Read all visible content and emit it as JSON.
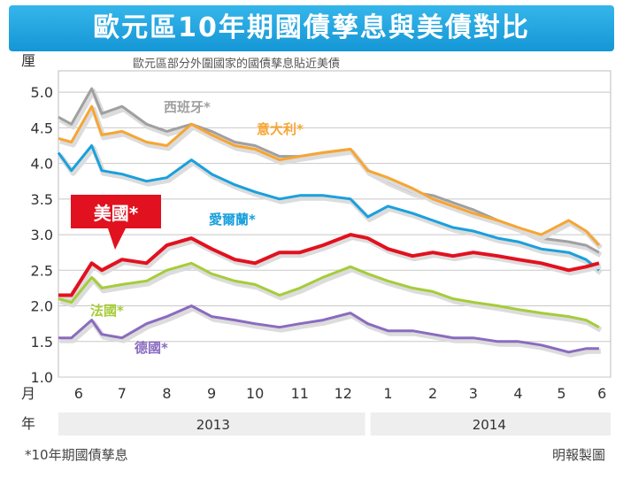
{
  "chart_data": {
    "type": "line",
    "title": "歐元區10年期國債孳息與美債對比",
    "subtitle": "歐元區部分外圍國家的國債孳息貼近美債",
    "ylabel": "厘",
    "month_label": "月",
    "year_label": "年",
    "ylim": [
      1.0,
      5.3
    ],
    "yticks": [
      "1.0",
      "1.5",
      "2.0",
      "2.5",
      "3.0",
      "3.5",
      "4.0",
      "4.5",
      "5.0"
    ],
    "months": [
      "6",
      "7",
      "8",
      "9",
      "10",
      "11",
      "12",
      "1",
      "2",
      "3",
      "4",
      "5",
      "6"
    ],
    "years": [
      "2013",
      "2014"
    ],
    "grid": true,
    "series": [
      {
        "name": "西班牙*",
        "color": "#a0a0a0",
        "x": [
          "2013-06-01",
          "2013-06-10",
          "2013-06-24",
          "2013-07-01",
          "2013-07-15",
          "2013-08-01",
          "2013-08-15",
          "2013-09-01",
          "2013-09-15",
          "2013-10-01",
          "2013-10-15",
          "2013-11-01",
          "2013-11-15",
          "2013-12-01",
          "2013-12-20",
          "2014-01-01",
          "2014-01-15",
          "2014-02-01",
          "2014-02-15",
          "2014-03-01",
          "2014-03-15",
          "2014-04-01",
          "2014-04-15",
          "2014-05-01",
          "2014-05-20",
          "2014-06-01",
          "2014-06-10"
        ],
        "y": [
          4.65,
          4.55,
          5.05,
          4.7,
          4.8,
          4.55,
          4.45,
          4.55,
          4.45,
          4.3,
          4.25,
          4.1,
          4.1,
          4.15,
          4.2,
          3.9,
          3.75,
          3.6,
          3.55,
          3.45,
          3.35,
          3.2,
          3.1,
          2.95,
          2.9,
          2.85,
          2.75
        ]
      },
      {
        "name": "意大利*",
        "color": "#f7a533",
        "x": [
          "2013-06-01",
          "2013-06-10",
          "2013-06-24",
          "2013-07-01",
          "2013-07-15",
          "2013-08-01",
          "2013-08-15",
          "2013-09-01",
          "2013-09-15",
          "2013-10-01",
          "2013-10-15",
          "2013-11-01",
          "2013-11-15",
          "2013-12-01",
          "2013-12-20",
          "2014-01-01",
          "2014-01-15",
          "2014-02-01",
          "2014-02-15",
          "2014-03-01",
          "2014-03-15",
          "2014-04-01",
          "2014-04-15",
          "2014-05-01",
          "2014-05-20",
          "2014-06-01",
          "2014-06-10"
        ],
        "y": [
          4.35,
          4.3,
          4.8,
          4.4,
          4.45,
          4.3,
          4.25,
          4.55,
          4.4,
          4.25,
          4.2,
          4.05,
          4.1,
          4.15,
          4.2,
          3.9,
          3.8,
          3.65,
          3.5,
          3.4,
          3.3,
          3.2,
          3.1,
          3.0,
          3.2,
          3.05,
          2.85
        ]
      },
      {
        "name": "愛爾蘭*",
        "color": "#1aa0dc",
        "x": [
          "2013-06-01",
          "2013-06-10",
          "2013-06-24",
          "2013-07-01",
          "2013-07-15",
          "2013-08-01",
          "2013-08-15",
          "2013-09-01",
          "2013-09-15",
          "2013-10-01",
          "2013-10-15",
          "2013-11-01",
          "2013-11-15",
          "2013-12-01",
          "2013-12-20",
          "2014-01-01",
          "2014-01-15",
          "2014-02-01",
          "2014-02-15",
          "2014-03-01",
          "2014-03-15",
          "2014-04-01",
          "2014-04-15",
          "2014-05-01",
          "2014-05-20",
          "2014-06-01",
          "2014-06-10"
        ],
        "y": [
          4.15,
          3.9,
          4.25,
          3.9,
          3.85,
          3.75,
          3.8,
          4.05,
          3.85,
          3.7,
          3.6,
          3.5,
          3.55,
          3.55,
          3.5,
          3.25,
          3.4,
          3.3,
          3.2,
          3.1,
          3.05,
          2.95,
          2.9,
          2.8,
          2.75,
          2.65,
          2.5
        ]
      },
      {
        "name": "美國*",
        "color": "#e2111f",
        "x": [
          "2013-06-01",
          "2013-06-10",
          "2013-06-24",
          "2013-07-01",
          "2013-07-15",
          "2013-08-01",
          "2013-08-15",
          "2013-09-01",
          "2013-09-15",
          "2013-10-01",
          "2013-10-15",
          "2013-11-01",
          "2013-11-15",
          "2013-12-01",
          "2013-12-20",
          "2014-01-01",
          "2014-01-15",
          "2014-02-01",
          "2014-02-15",
          "2014-03-01",
          "2014-03-15",
          "2014-04-01",
          "2014-04-15",
          "2014-05-01",
          "2014-05-20",
          "2014-06-01",
          "2014-06-10"
        ],
        "y": [
          2.15,
          2.15,
          2.6,
          2.5,
          2.65,
          2.6,
          2.85,
          2.95,
          2.8,
          2.65,
          2.6,
          2.75,
          2.75,
          2.85,
          3.0,
          2.95,
          2.8,
          2.7,
          2.75,
          2.7,
          2.75,
          2.7,
          2.65,
          2.6,
          2.5,
          2.55,
          2.6
        ]
      },
      {
        "name": "法國*",
        "color": "#a6cc3a",
        "x": [
          "2013-06-01",
          "2013-06-10",
          "2013-06-24",
          "2013-07-01",
          "2013-07-15",
          "2013-08-01",
          "2013-08-15",
          "2013-09-01",
          "2013-09-15",
          "2013-10-01",
          "2013-10-15",
          "2013-11-01",
          "2013-11-15",
          "2013-12-01",
          "2013-12-20",
          "2014-01-01",
          "2014-01-15",
          "2014-02-01",
          "2014-02-15",
          "2014-03-01",
          "2014-03-15",
          "2014-04-01",
          "2014-04-15",
          "2014-05-01",
          "2014-05-20",
          "2014-06-01",
          "2014-06-10"
        ],
        "y": [
          2.1,
          2.05,
          2.4,
          2.25,
          2.3,
          2.35,
          2.5,
          2.6,
          2.45,
          2.35,
          2.3,
          2.15,
          2.25,
          2.4,
          2.55,
          2.45,
          2.35,
          2.25,
          2.2,
          2.1,
          2.05,
          2.0,
          1.95,
          1.9,
          1.85,
          1.8,
          1.7
        ]
      },
      {
        "name": "德國*",
        "color": "#8a6bbf",
        "x": [
          "2013-06-01",
          "2013-06-10",
          "2013-06-24",
          "2013-07-01",
          "2013-07-15",
          "2013-08-01",
          "2013-08-15",
          "2013-09-01",
          "2013-09-15",
          "2013-10-01",
          "2013-10-15",
          "2013-11-01",
          "2013-11-15",
          "2013-12-01",
          "2013-12-20",
          "2014-01-01",
          "2014-01-15",
          "2014-02-01",
          "2014-02-15",
          "2014-03-01",
          "2014-03-15",
          "2014-04-01",
          "2014-04-15",
          "2014-05-01",
          "2014-05-20",
          "2014-06-01",
          "2014-06-10"
        ],
        "y": [
          1.55,
          1.55,
          1.8,
          1.6,
          1.55,
          1.75,
          1.85,
          2.0,
          1.85,
          1.8,
          1.75,
          1.7,
          1.75,
          1.8,
          1.9,
          1.75,
          1.65,
          1.65,
          1.6,
          1.55,
          1.55,
          1.5,
          1.5,
          1.45,
          1.35,
          1.4,
          1.4
        ]
      }
    ]
  },
  "footnote": "*10年期國債孳息",
  "credit": "明報製圖"
}
